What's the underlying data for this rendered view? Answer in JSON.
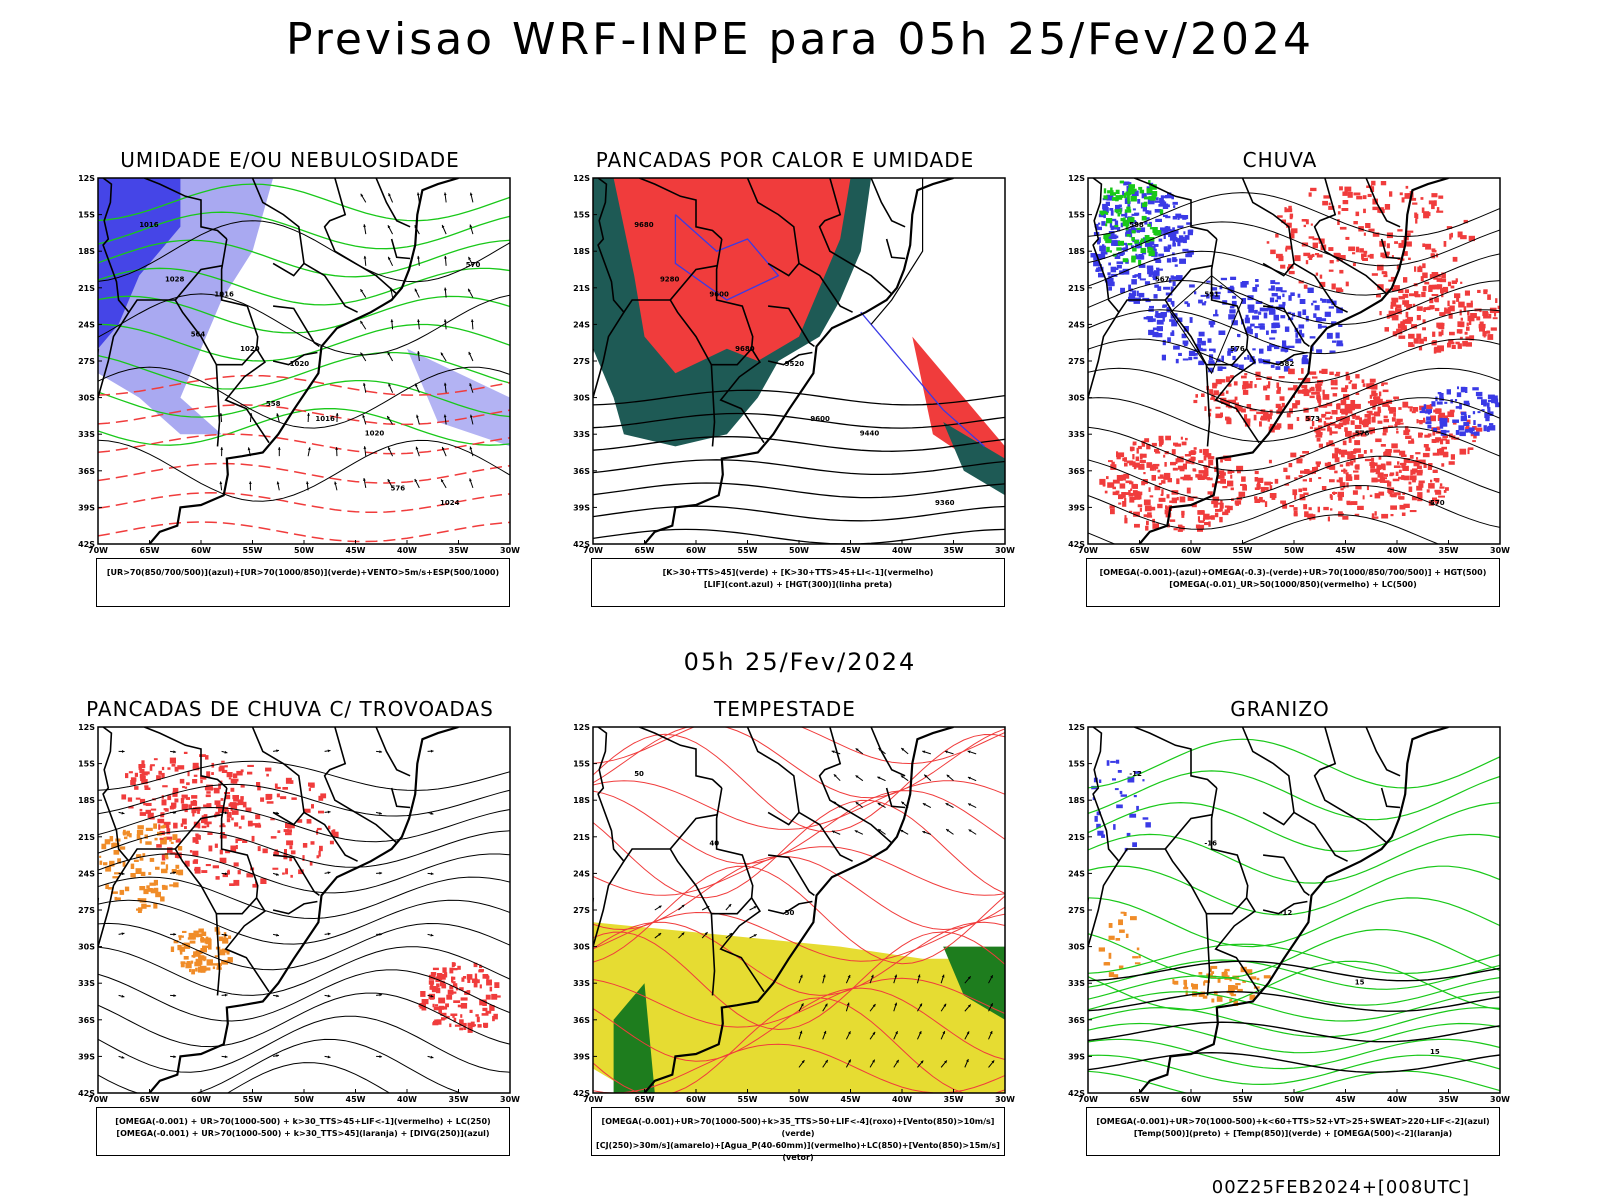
{
  "title": "Previsao WRF-INPE  para 05h 25/Fev/2024",
  "subtitle": "05h 25/Fev/2024",
  "footer": "00Z25FEB2024+[008UTC]",
  "axis": {
    "lat_labels": [
      "12S",
      "15S",
      "18S",
      "21S",
      "24S",
      "27S",
      "30S",
      "33S",
      "36S",
      "39S",
      "42S"
    ],
    "lon_labels": [
      "70W",
      "65W",
      "60W",
      "55W",
      "50W",
      "45W",
      "40W",
      "35W",
      "30W"
    ]
  },
  "colors": {
    "blue": "#3a3ae6",
    "light_blue": "#a0a0f0",
    "green": "#19c819",
    "red": "#f03c3c",
    "dark_teal": "#1e5a55",
    "orange": "#f08c28",
    "yellow": "#e6dc32",
    "dark_green": "#1e7d1e"
  },
  "panels": [
    {
      "title": "UMIDADE E/OU NEBULOSIDADE",
      "legend": [
        "[UR>70(850/700/500)](azul)+[UR>70(1000/850)](verde)+VENTO>5m/s+ESP(500/1000)"
      ],
      "contour_labels": [
        "1016",
        "1016",
        "1020",
        "1020",
        "1024",
        "1028",
        "1020",
        "1016",
        "576",
        "570",
        "564",
        "558"
      ]
    },
    {
      "title": "PANCADAS POR CALOR E UMIDADE",
      "legend": [
        "[K>30+TTS>45](verde) + [K>30+TTS>45+LI<-1](vermelho)",
        "[LIF](cont.azul) + [HGT(300)](linha preta)"
      ],
      "contour_labels": [
        "9680",
        "9600",
        "9520",
        "9440",
        "9360",
        "9280",
        "9680",
        "9600"
      ]
    },
    {
      "title": "CHUVA",
      "legend": [
        "[OMEGA(-0.001)-(azul)+OMEGA(-0.3)-(verde)+UR>70(1000/850/700/500)] + HGT(500)",
        "[OMEGA(-0.01)_UR>50(1000/850)(vermelho) + LC(500)"
      ],
      "contour_labels": [
        "588",
        "591",
        "582",
        "576",
        "570",
        "567",
        "576",
        "573"
      ]
    },
    {
      "title": "PANCADAS DE CHUVA C/ TROVOADAS",
      "legend": [
        "[OMEGA(-0.001) + UR>70(1000-500) + k>30_TTS>45+LIF<-1](vermelho) + LC(250)",
        "[OMEGA(-0.001) + UR>70(1000-500) + k>30_TTS>45](laranja) + [DIVG(250)](azul)"
      ],
      "contour_labels": []
    },
    {
      "title": "TEMPESTADE",
      "legend": [
        "[OMEGA(-0.001)+UR>70(1000-500)+k>35_TTS>50+LIF<-4](roxo)+[Vento(850)>10m/s](verde)",
        "[CJ(250)>30m/s](amarelo)+[Agua_P(40-60mm)](vermelho)+LC(850)+[Vento(850)>15m/s](vetor)"
      ],
      "contour_labels": [
        "50",
        "40",
        "50"
      ]
    },
    {
      "title": "GRANIZO",
      "legend": [
        "[OMEGA(-0.001)+UR>70(1000-500)+k<60+TTS>52+VT>25+SWEAT>220+LIF<-2](azul)",
        "[Temp(500)](preto) + [Temp(850)](verde) + [OMEGA(500)<-2](laranja)"
      ],
      "contour_labels": [
        "-12",
        "-16",
        "-12",
        "15",
        "15"
      ]
    }
  ]
}
